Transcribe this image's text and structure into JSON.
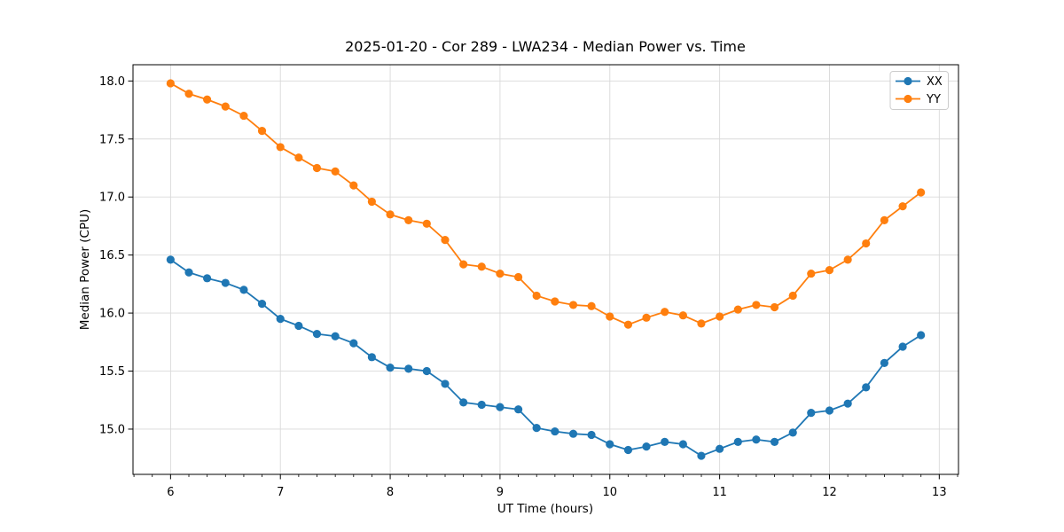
{
  "chart_data": {
    "type": "line",
    "title": "2025-01-20 - Cor 289 - LWA234 - Median Power vs. Time",
    "xlabel": "UT Time (hours)",
    "ylabel": "Median Power (CPU)",
    "xlim": [
      5.658,
      13.175
    ],
    "ylim": [
      14.61,
      18.14
    ],
    "xticks": [
      6,
      7,
      8,
      9,
      10,
      11,
      12,
      13
    ],
    "yticks": [
      15.0,
      15.5,
      16.0,
      16.5,
      17.0,
      17.5,
      18.0
    ],
    "x_minor_step": 0.16667,
    "grid": true,
    "grid_color": "#d9d9d9",
    "legend_position": "upper right",
    "marker": "o",
    "x": [
      6.0,
      6.167,
      6.333,
      6.5,
      6.667,
      6.833,
      7.0,
      7.167,
      7.333,
      7.5,
      7.667,
      7.833,
      8.0,
      8.167,
      8.333,
      8.5,
      8.667,
      8.833,
      9.0,
      9.167,
      9.333,
      9.5,
      9.667,
      9.833,
      10.0,
      10.167,
      10.333,
      10.5,
      10.667,
      10.833,
      11.0,
      11.167,
      11.333,
      11.5,
      11.667,
      11.833,
      12.0,
      12.167,
      12.333,
      12.5,
      12.667,
      12.833
    ],
    "series": [
      {
        "name": "XX",
        "color": "#1f77b4",
        "values": [
          16.46,
          16.35,
          16.3,
          16.26,
          16.2,
          16.08,
          15.95,
          15.89,
          15.82,
          15.8,
          15.74,
          15.62,
          15.53,
          15.52,
          15.5,
          15.39,
          15.23,
          15.21,
          15.19,
          15.17,
          15.01,
          14.98,
          14.96,
          14.95,
          14.87,
          14.82,
          14.85,
          14.89,
          14.87,
          14.77,
          14.83,
          14.89,
          14.91,
          14.89,
          14.97,
          15.14,
          15.16,
          15.22,
          15.36,
          15.57,
          15.71,
          15.81
        ]
      },
      {
        "name": "YY",
        "color": "#ff7f0e",
        "values": [
          17.98,
          17.89,
          17.84,
          17.78,
          17.7,
          17.57,
          17.43,
          17.34,
          17.25,
          17.22,
          17.1,
          16.96,
          16.85,
          16.8,
          16.77,
          16.63,
          16.42,
          16.4,
          16.34,
          16.31,
          16.15,
          16.1,
          16.07,
          16.06,
          15.97,
          15.9,
          15.96,
          16.01,
          15.98,
          15.91,
          15.97,
          16.03,
          16.07,
          16.05,
          16.15,
          16.34,
          16.37,
          16.46,
          16.6,
          16.8,
          16.92,
          17.04
        ]
      }
    ]
  },
  "legend": {
    "items": [
      {
        "label": "XX",
        "color": "#1f77b4"
      },
      {
        "label": "YY",
        "color": "#ff7f0e"
      }
    ]
  },
  "style": {
    "spine_color": "#000000",
    "tick_color": "#000000",
    "legend_border_color": "#cccccc",
    "legend_bg": "rgba(255,255,255,0.85)"
  }
}
